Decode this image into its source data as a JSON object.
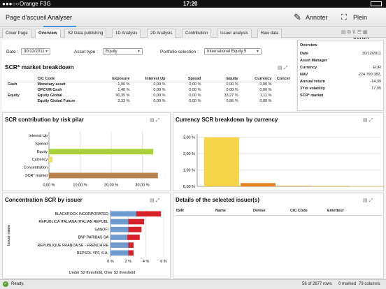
{
  "statusbar": {
    "carrier": "Orange F",
    "network": "3G",
    "time": "17:20"
  },
  "appbar": {
    "tabs": [
      {
        "label": "Page d'accueil"
      },
      {
        "label": "Analyser"
      }
    ],
    "annotate_label": "Annoter",
    "fullscreen_label": "Plein écran"
  },
  "subtabs": [
    {
      "label": "Cover Page"
    },
    {
      "label": "Overview"
    },
    {
      "label": "S2 Data publishing"
    },
    {
      "label": "1D Analysis"
    },
    {
      "label": "2D Analysis"
    },
    {
      "label": "Contribution"
    },
    {
      "label": "Issuer analysis"
    },
    {
      "label": "Raw data"
    }
  ],
  "filters": {
    "date_label": "Date :",
    "date_value": "30/12/2011",
    "asset_type_label": "Asset type :",
    "asset_type_value": "Equity",
    "portfolio_label": "Portfolio selection :",
    "portfolio_value": "International Equity 5"
  },
  "overview": {
    "title": "Overview",
    "rows": [
      {
        "label": "Date",
        "value": "30/12/2011"
      },
      {
        "label": "Asset Manager",
        "value": ""
      },
      {
        "label": "Currency",
        "value": "EUR"
      },
      {
        "label": "NAV",
        "value": "224 790 382,"
      },
      {
        "label": "Annual return",
        "value": "-14,39"
      },
      {
        "label": "3Yrs volatility",
        "value": "17,95"
      },
      {
        "label": "SCR* market",
        "value": ""
      }
    ]
  },
  "breakdown": {
    "title": "SCR* market breakdown",
    "headers": [
      "",
      "CIC Code",
      "Exposure",
      "Interest Up",
      "Spread",
      "Equity",
      "Currency",
      "Concer"
    ],
    "rows": [
      [
        "Cash",
        "Monetary asset",
        "-1,06 %",
        "0,00 %",
        "0,00 %",
        "0,00 %",
        "0,00 %",
        ""
      ],
      [
        "",
        "OPCVM Cash",
        "1,40 %",
        "0,00 %",
        "0,00 %",
        "0,00 %",
        "0,00 %",
        ""
      ],
      [
        "Equity",
        "Equity Global",
        "90,35 %",
        "0,00 %",
        "0,00 %",
        "33,27 %",
        "1,11 %",
        ""
      ],
      [
        "",
        "Equity Global Future",
        "2,33 %",
        "0,00 %",
        "0,00 %",
        "0,86 %",
        "0,00 %",
        ""
      ]
    ]
  },
  "risk_pilar": {
    "title": "SCR contribution by risk pilar",
    "categories": [
      "Interest Up",
      "Spread",
      "Equity",
      "Currency",
      "Concentration",
      "SCR* market"
    ],
    "values": [
      0,
      0,
      33.5,
      1.1,
      0,
      35.0
    ],
    "colors": [
      "#c9a0d8",
      "#8fb8e0",
      "#a9cf3b",
      "#f0e070",
      "#9bb7c9",
      "#b8824f"
    ],
    "ticks": [
      "0,00 %",
      "10,00 %",
      "20,00 %",
      "30,00 %"
    ],
    "xlim": [
      0,
      35.5
    ]
  },
  "currency": {
    "title": "Currency SCR breakdown by currency",
    "values": [
      3.0,
      0.2,
      0.05,
      0.03,
      0.02
    ],
    "colors": [
      "#f5d547",
      "#e8821f",
      "#e0c74a",
      "#cfb95a",
      "#d7c27a"
    ],
    "ticks": [
      "0,00 %",
      "1,00 %",
      "2,00 %",
      "3,00 %"
    ],
    "ylim": [
      0,
      3.2
    ]
  },
  "concentration": {
    "title": "Concentration SCR by issuer",
    "axis_label": "Issuer name",
    "categories": [
      "BLACKROCK INCORPORATED",
      "REPUBLICA ITALIANA (ITALIAN REPUBL",
      "SANOFI",
      "BNP PARIBAS SA",
      "REPUBLIQUE FRANCAISE - FRENCH RE",
      "REPSOL YPF, S.A."
    ],
    "under_values": [
      2.9,
      2.0,
      2.0,
      1.9,
      2.0,
      2.0
    ],
    "over_values": [
      2.8,
      1.8,
      1.5,
      1.4,
      0.6,
      0.6
    ],
    "ticks": [
      "0 %",
      "2 %",
      "4 %",
      "6 %"
    ],
    "xlim": [
      0,
      6
    ],
    "legend": "Under S2 threshold, Over S2 threshold",
    "colors": {
      "under": "#6f9bcf",
      "over": "#d8202a"
    }
  },
  "details": {
    "title": "Details of the selected issuer(s)",
    "headers": [
      "ISIN",
      "Name",
      "Devise",
      "CIC Code",
      "Emetteur"
    ]
  },
  "footer": {
    "status": "Ready.",
    "rows": "56 of 2677 rows",
    "marked": "0 marked",
    "columns": "79 columns"
  }
}
